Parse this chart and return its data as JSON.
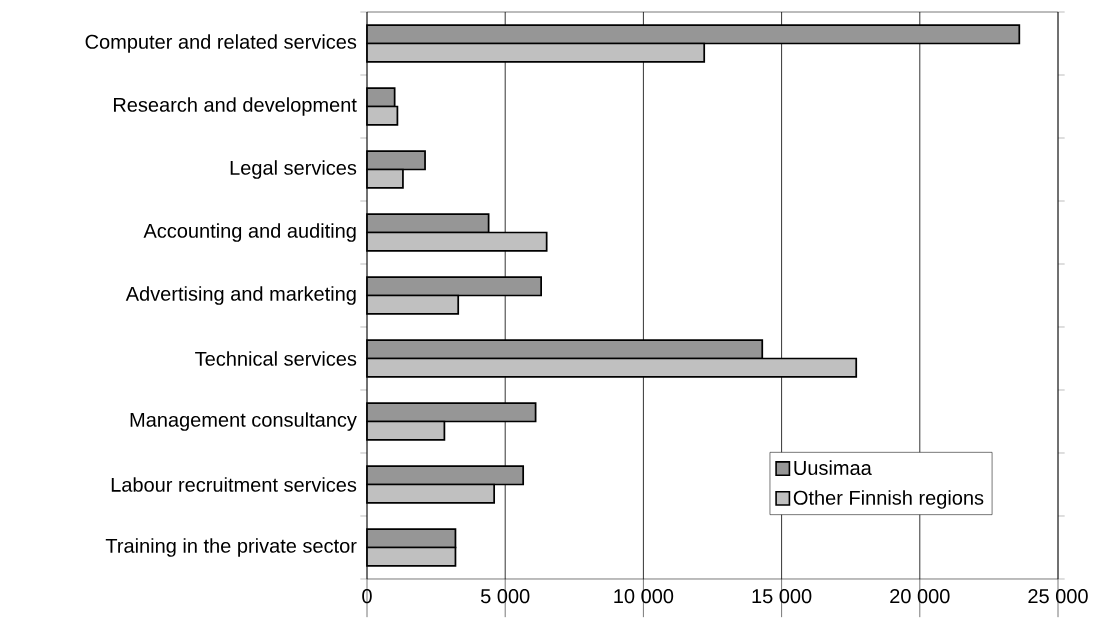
{
  "chart_data": {
    "type": "bar",
    "orientation": "horizontal",
    "categories": [
      "Computer and related services",
      "Research and development",
      "Legal services",
      "Accounting and auditing",
      "Advertising and marketing",
      "Technical services",
      "Management consultancy",
      "Labour recruitment services",
      "Training in the private sector"
    ],
    "series": [
      {
        "name": "Uusimaa",
        "color": "#969696",
        "values": [
          23600,
          1000,
          2100,
          4400,
          6300,
          14300,
          6100,
          5650,
          3200
        ]
      },
      {
        "name": "Other Finnish regions",
        "color": "#c0c0c0",
        "values": [
          12200,
          1100,
          1300,
          6500,
          3300,
          17700,
          2800,
          4600,
          3200
        ]
      }
    ],
    "xlim": [
      0,
      25000
    ],
    "xticks": [
      0,
      {
        "value": 5000,
        "label": "5 000"
      },
      {
        "value": 10000,
        "label": "10 000"
      },
      {
        "value": 15000,
        "label": "15 000"
      },
      {
        "value": 20000,
        "label": "20 000"
      },
      {
        "value": 25000,
        "label": "25 000"
      }
    ],
    "grid": "x",
    "legend": "bottom right"
  }
}
